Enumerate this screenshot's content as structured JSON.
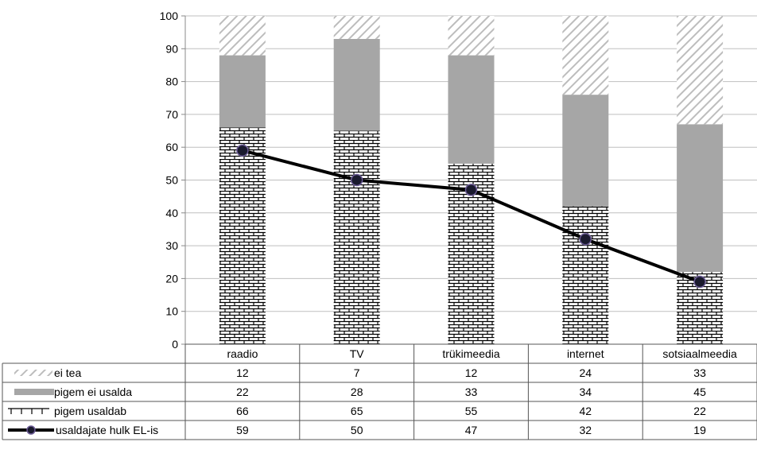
{
  "chart_data": {
    "type": "bar",
    "stacked": true,
    "categories": [
      "raadio",
      "TV",
      "trükimeedia",
      "internet",
      "sotsiaalmeedia"
    ],
    "series": [
      {
        "name": "pigem usaldab",
        "values": [
          66,
          65,
          55,
          42,
          22
        ],
        "pattern": "brick",
        "color": "#000000"
      },
      {
        "name": "pigem ei usalda",
        "values": [
          22,
          28,
          33,
          34,
          45
        ],
        "pattern": "solid",
        "color": "#a6a6a6"
      },
      {
        "name": "ei tea",
        "values": [
          12,
          7,
          12,
          24,
          33
        ],
        "pattern": "diagonal-hatch",
        "color": "#bfbfbf"
      }
    ],
    "line_series": {
      "name": "usaldajate hulk EL-is",
      "values": [
        59,
        50,
        47,
        32,
        19
      ],
      "color": "#000000",
      "marker_color": "#1a1a2e"
    },
    "ylim": [
      0,
      100
    ],
    "yticks": [
      "0",
      "10",
      "20",
      "30",
      "40",
      "50",
      "60",
      "70",
      "80",
      "90",
      "100"
    ],
    "grid": true,
    "data_table": {
      "row_order": [
        "ei tea",
        "pigem ei usalda",
        "pigem usaldab",
        "usaldajate hulk EL-is"
      ],
      "rows": [
        {
          "label": "ei tea",
          "values": [
            "12",
            "7",
            "12",
            "24",
            "33"
          ]
        },
        {
          "label": "pigem ei usalda",
          "values": [
            "22",
            "28",
            "33",
            "34",
            "45"
          ]
        },
        {
          "label": "pigem usaldab",
          "values": [
            "66",
            "65",
            "55",
            "42",
            "22"
          ]
        },
        {
          "label": "usaldajate hulk EL-is",
          "values": [
            "59",
            "50",
            "47",
            "32",
            "19"
          ]
        }
      ]
    },
    "title": "",
    "xlabel": "",
    "ylabel": ""
  }
}
